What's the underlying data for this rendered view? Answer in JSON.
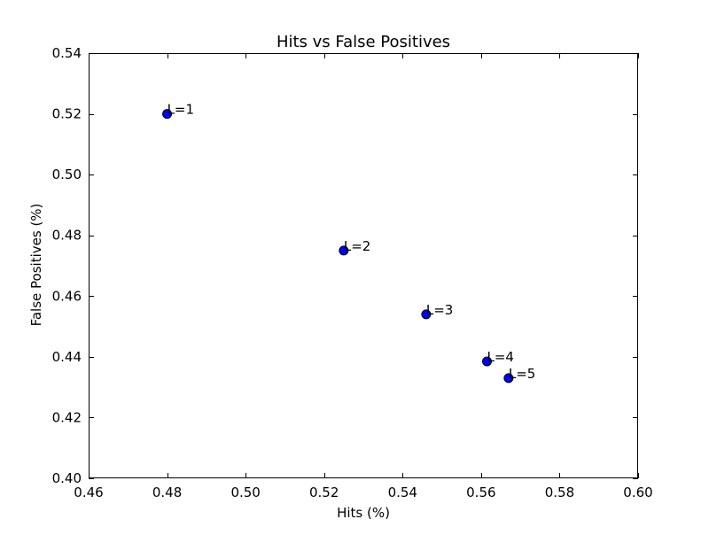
{
  "chart_data": {
    "type": "scatter",
    "title": "Hits vs False Positives",
    "xlabel": "Hits (%)",
    "ylabel": "False Positives (%)",
    "xlim": [
      0.46,
      0.6
    ],
    "ylim": [
      0.4,
      0.54
    ],
    "x_ticks": [
      0.46,
      0.48,
      0.5,
      0.52,
      0.54,
      0.56,
      0.58,
      0.6
    ],
    "y_ticks": [
      0.4,
      0.42,
      0.44,
      0.46,
      0.48,
      0.5,
      0.52,
      0.54
    ],
    "tick_format_decimals": 2,
    "grid": false,
    "marker_color": "#0000ff",
    "marker_edge_color": "#000000",
    "points": [
      {
        "x": 0.48,
        "y": 0.52,
        "label": "L=1"
      },
      {
        "x": 0.525,
        "y": 0.475,
        "label": "L=2"
      },
      {
        "x": 0.546,
        "y": 0.454,
        "label": "L=3"
      },
      {
        "x": 0.5615,
        "y": 0.4385,
        "label": "L=4"
      },
      {
        "x": 0.567,
        "y": 0.433,
        "label": "L=5"
      }
    ]
  }
}
